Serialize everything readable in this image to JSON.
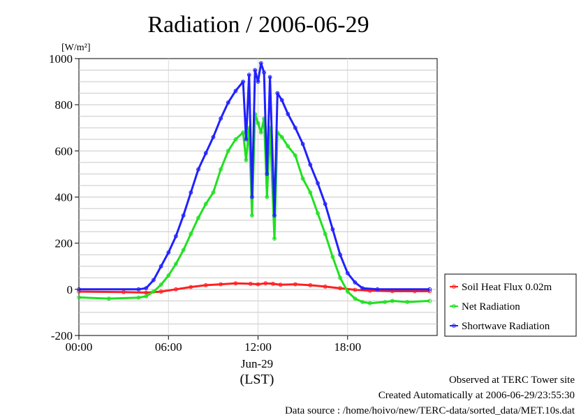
{
  "chart_data": {
    "type": "line",
    "title": "Radiation / 2006-06-29",
    "ylabel_unit": "[W/m²]",
    "xlabel": "(LST)",
    "date_label": "Jun-29",
    "ylim": [
      -200,
      1000
    ],
    "xlim_hours": [
      0,
      24
    ],
    "yticks": [
      -200,
      0,
      200,
      400,
      600,
      800,
      1000
    ],
    "xticks": [
      {
        "hour": 0,
        "label": "00:00"
      },
      {
        "hour": 6,
        "label": "06:00"
      },
      {
        "hour": 12,
        "label": "12:00"
      },
      {
        "hour": 18,
        "label": "18:00"
      }
    ],
    "grid": true,
    "legend_position": "right-bottom",
    "series": [
      {
        "name": "Soil Heat Flux 0.02m",
        "color": "#ff2020",
        "points": [
          [
            0,
            -10
          ],
          [
            3,
            -12
          ],
          [
            4.5,
            -14
          ],
          [
            5.5,
            -10
          ],
          [
            6.5,
            0
          ],
          [
            7.5,
            10
          ],
          [
            8.5,
            18
          ],
          [
            9.5,
            22
          ],
          [
            10.5,
            26
          ],
          [
            11.5,
            24
          ],
          [
            12,
            22
          ],
          [
            12.5,
            26
          ],
          [
            13,
            24
          ],
          [
            13.5,
            20
          ],
          [
            14.5,
            22
          ],
          [
            15.5,
            18
          ],
          [
            16.5,
            12
          ],
          [
            17.5,
            5
          ],
          [
            18.5,
            -2
          ],
          [
            19.5,
            -6
          ],
          [
            21,
            -8
          ],
          [
            22.5,
            -8
          ],
          [
            23.5,
            -8
          ]
        ]
      },
      {
        "name": "Net Radiation",
        "color": "#20e020",
        "points": [
          [
            0,
            -35
          ],
          [
            2,
            -40
          ],
          [
            4,
            -36
          ],
          [
            4.5,
            -30
          ],
          [
            5,
            -10
          ],
          [
            5.5,
            20
          ],
          [
            6,
            60
          ],
          [
            6.5,
            110
          ],
          [
            7,
            170
          ],
          [
            7.5,
            240
          ],
          [
            8,
            310
          ],
          [
            8.5,
            370
          ],
          [
            9,
            420
          ],
          [
            9.5,
            520
          ],
          [
            10,
            600
          ],
          [
            10.5,
            650
          ],
          [
            11,
            680
          ],
          [
            11.2,
            560
          ],
          [
            11.4,
            700
          ],
          [
            11.6,
            320
          ],
          [
            11.8,
            760
          ],
          [
            12,
            720
          ],
          [
            12.2,
            680
          ],
          [
            12.4,
            740
          ],
          [
            12.6,
            400
          ],
          [
            12.8,
            700
          ],
          [
            13.1,
            220
          ],
          [
            13.3,
            680
          ],
          [
            13.6,
            660
          ],
          [
            14,
            620
          ],
          [
            14.5,
            580
          ],
          [
            15,
            480
          ],
          [
            15.5,
            420
          ],
          [
            16,
            330
          ],
          [
            16.5,
            240
          ],
          [
            17,
            140
          ],
          [
            17.5,
            50
          ],
          [
            18,
            -10
          ],
          [
            18.5,
            -40
          ],
          [
            19,
            -55
          ],
          [
            19.5,
            -60
          ],
          [
            20.5,
            -55
          ],
          [
            21,
            -50
          ],
          [
            22,
            -55
          ],
          [
            23.5,
            -50
          ]
        ]
      },
      {
        "name": "Shortwave Radiation",
        "color": "#2020ff",
        "points": [
          [
            0,
            0
          ],
          [
            4,
            0
          ],
          [
            4.5,
            5
          ],
          [
            5,
            40
          ],
          [
            5.5,
            100
          ],
          [
            6,
            160
          ],
          [
            6.5,
            230
          ],
          [
            7,
            320
          ],
          [
            7.5,
            420
          ],
          [
            8,
            520
          ],
          [
            8.5,
            590
          ],
          [
            9,
            660
          ],
          [
            9.5,
            740
          ],
          [
            10,
            810
          ],
          [
            10.5,
            860
          ],
          [
            11,
            900
          ],
          [
            11.2,
            650
          ],
          [
            11.4,
            930
          ],
          [
            11.6,
            400
          ],
          [
            11.8,
            950
          ],
          [
            12,
            900
          ],
          [
            12.2,
            980
          ],
          [
            12.4,
            940
          ],
          [
            12.6,
            500
          ],
          [
            12.8,
            920
          ],
          [
            13.1,
            320
          ],
          [
            13.3,
            850
          ],
          [
            13.6,
            820
          ],
          [
            14,
            760
          ],
          [
            14.5,
            700
          ],
          [
            15,
            630
          ],
          [
            15.5,
            540
          ],
          [
            16,
            460
          ],
          [
            16.5,
            370
          ],
          [
            17,
            260
          ],
          [
            17.5,
            150
          ],
          [
            18,
            70
          ],
          [
            18.5,
            30
          ],
          [
            19,
            5
          ],
          [
            20,
            0
          ],
          [
            23.5,
            0
          ]
        ]
      }
    ]
  },
  "footer": {
    "line1": "Observed at TERC Tower site",
    "line2": "Created Automatically at 2006-06-29/23:55:30",
    "line3": "Data source : /home/hoivo/new/TERC-data/sorted_data/MET.10s.dat"
  }
}
